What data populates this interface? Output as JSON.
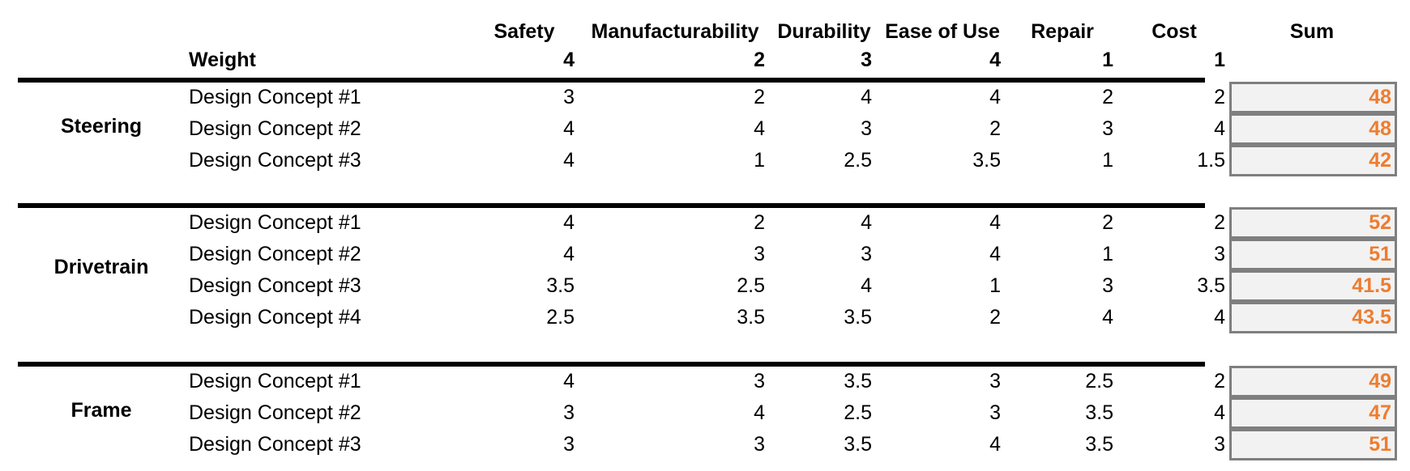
{
  "columns": [
    "Safety",
    "Manufacturability",
    "Durability",
    "Ease of Use",
    "Repair",
    "Cost"
  ],
  "sum_label": "Sum",
  "weight_label": "Weight",
  "weights": [
    "4",
    "2",
    "3",
    "4",
    "1",
    "1"
  ],
  "groups": [
    {
      "name": "Steering",
      "rows": [
        {
          "concept": "Design Concept #1",
          "scores": [
            "3",
            "2",
            "4",
            "4",
            "2",
            "2"
          ],
          "sum": "48"
        },
        {
          "concept": "Design Concept #2",
          "scores": [
            "4",
            "4",
            "3",
            "2",
            "3",
            "4"
          ],
          "sum": "48"
        },
        {
          "concept": "Design Concept #3",
          "scores": [
            "4",
            "1",
            "2.5",
            "3.5",
            "1",
            "1.5"
          ],
          "sum": "42"
        }
      ]
    },
    {
      "name": "Drivetrain",
      "rows": [
        {
          "concept": "Design Concept #1",
          "scores": [
            "4",
            "2",
            "4",
            "4",
            "2",
            "2"
          ],
          "sum": "52"
        },
        {
          "concept": "Design Concept #2",
          "scores": [
            "4",
            "3",
            "3",
            "4",
            "1",
            "3"
          ],
          "sum": "51"
        },
        {
          "concept": "Design Concept #3",
          "scores": [
            "3.5",
            "2.5",
            "4",
            "1",
            "3",
            "3.5"
          ],
          "sum": "41.5"
        },
        {
          "concept": "Design Concept #4",
          "scores": [
            "2.5",
            "3.5",
            "3.5",
            "2",
            "4",
            "4"
          ],
          "sum": "43.5"
        }
      ]
    },
    {
      "name": "Frame",
      "rows": [
        {
          "concept": "Design Concept #1",
          "scores": [
            "4",
            "3",
            "3.5",
            "3",
            "2.5",
            "2"
          ],
          "sum": "49"
        },
        {
          "concept": "Design Concept #2",
          "scores": [
            "3",
            "4",
            "2.5",
            "3",
            "3.5",
            "4"
          ],
          "sum": "47"
        },
        {
          "concept": "Design Concept #3",
          "scores": [
            "3",
            "3",
            "3.5",
            "4",
            "3.5",
            "3"
          ],
          "sum": "51"
        }
      ]
    }
  ],
  "colors": {
    "sum_text": "#ed7d31",
    "sum_fill": "#f2f2f2",
    "sum_border": "#7f7f7f",
    "rule": "#000000"
  }
}
